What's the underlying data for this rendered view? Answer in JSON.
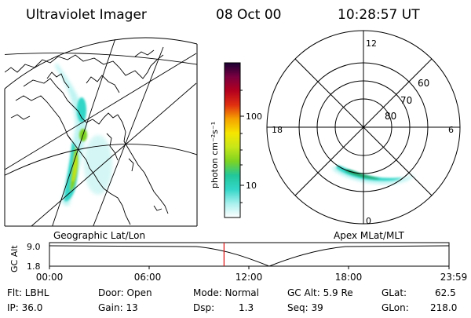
{
  "header": {
    "instrument": "Ultraviolet Imager",
    "date": "08 Oct 00",
    "time": "10:28:57 UT"
  },
  "geo_panel": {
    "label": "Geographic Lat/Lon"
  },
  "colorbar": {
    "unit_label": "photon cm⁻²s⁻¹",
    "ticks": [
      "100",
      "10"
    ]
  },
  "polar_panel": {
    "label": "Apex MLat/MLT",
    "mlt_labels": [
      "12",
      "18",
      "6",
      "0"
    ],
    "lat_labels": [
      "60",
      "70",
      "80"
    ]
  },
  "timeline": {
    "y_axis_label": "GC Alt",
    "y_ticks": [
      "9.0",
      "1.8"
    ],
    "x_ticks": [
      "00:00",
      "06:00",
      "12:00",
      "18:00",
      "23:59"
    ],
    "current_time_fraction": 0.437
  },
  "footer": {
    "flt": "Flt: LBHL",
    "ip": "IP: 36.0",
    "door": "Door: Open",
    "gain": "Gain: 13",
    "mode": "Mode: Normal",
    "dsp_label": "Dsp:",
    "dsp_value": "1.3",
    "gc_alt": "GC Alt: 5.9 Re",
    "seq": "Seq: 39",
    "glat_label": "GLat:",
    "glat_value": "62.5",
    "glon_label": "GLon:",
    "glon_value": "218.0"
  },
  "colors": {
    "scale": [
      "#ffffff",
      "#a8f0ee",
      "#33d6c8",
      "#22c79a",
      "#7ed321",
      "#c7e619",
      "#f5e600",
      "#f5a300",
      "#e03010",
      "#b4001e",
      "#7a0040",
      "#1a0033"
    ]
  }
}
